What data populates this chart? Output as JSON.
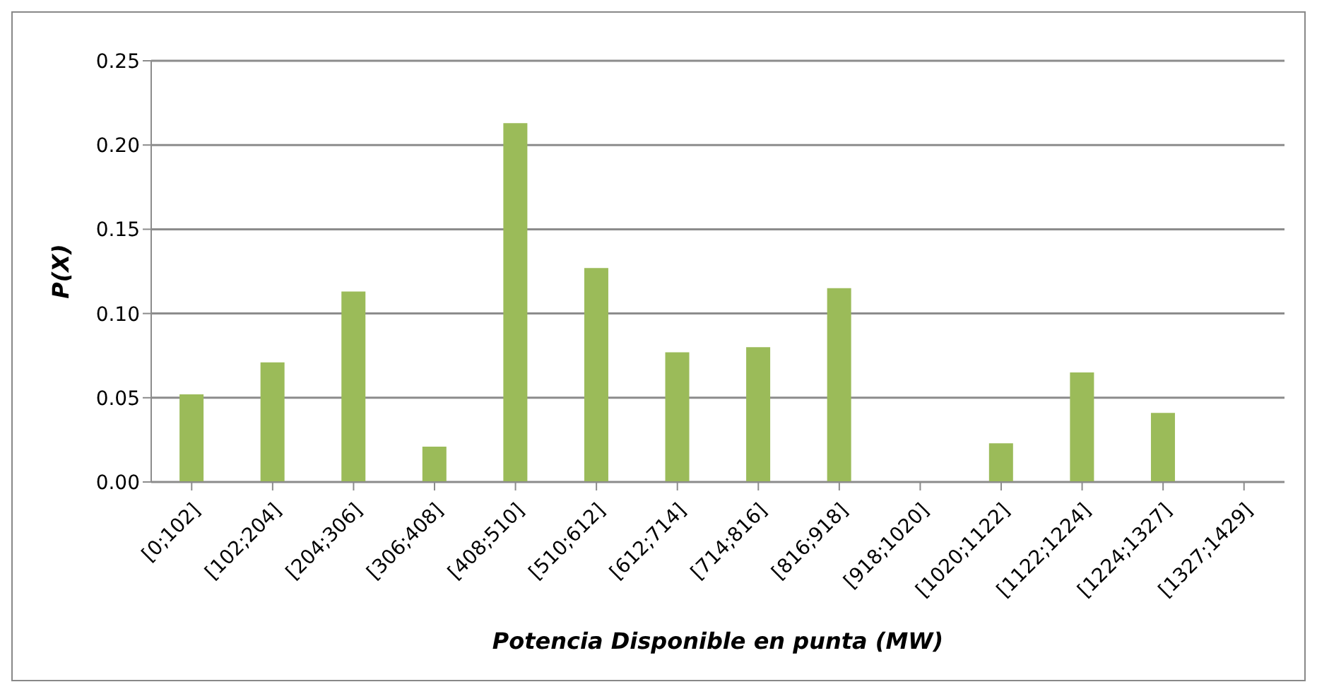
{
  "chart_data": {
    "type": "bar",
    "xlabel": "Potencia Disponible en punta (MW)",
    "ylabel": "P(X)",
    "categories": [
      "[0;102]",
      "[102;204]",
      "[204;306]",
      "[306;408]",
      "[408;510]",
      "[510;612]",
      "[612;714]",
      "[714;816]",
      "[816;918]",
      "[918;1020]",
      "[1020;1122]",
      "[1122;1224]",
      "[1224;1327]",
      "[1327;1429]"
    ],
    "values": [
      0.052,
      0.071,
      0.113,
      0.021,
      0.213,
      0.127,
      0.077,
      0.08,
      0.115,
      0,
      0.023,
      0.065,
      0.041,
      0
    ],
    "color": "#9bbb59",
    "ylim": [
      0,
      0.25
    ],
    "yticks": [
      {
        "value": 0,
        "label": "0.00"
      },
      {
        "value": 0.05,
        "label": "0.05"
      },
      {
        "value": 0.1,
        "label": "0.10"
      },
      {
        "value": 0.15,
        "label": "0.15"
      },
      {
        "value": 0.2,
        "label": "0.20"
      },
      {
        "value": 0.25,
        "label": "0.25"
      }
    ],
    "grid": "y",
    "legend": false
  }
}
